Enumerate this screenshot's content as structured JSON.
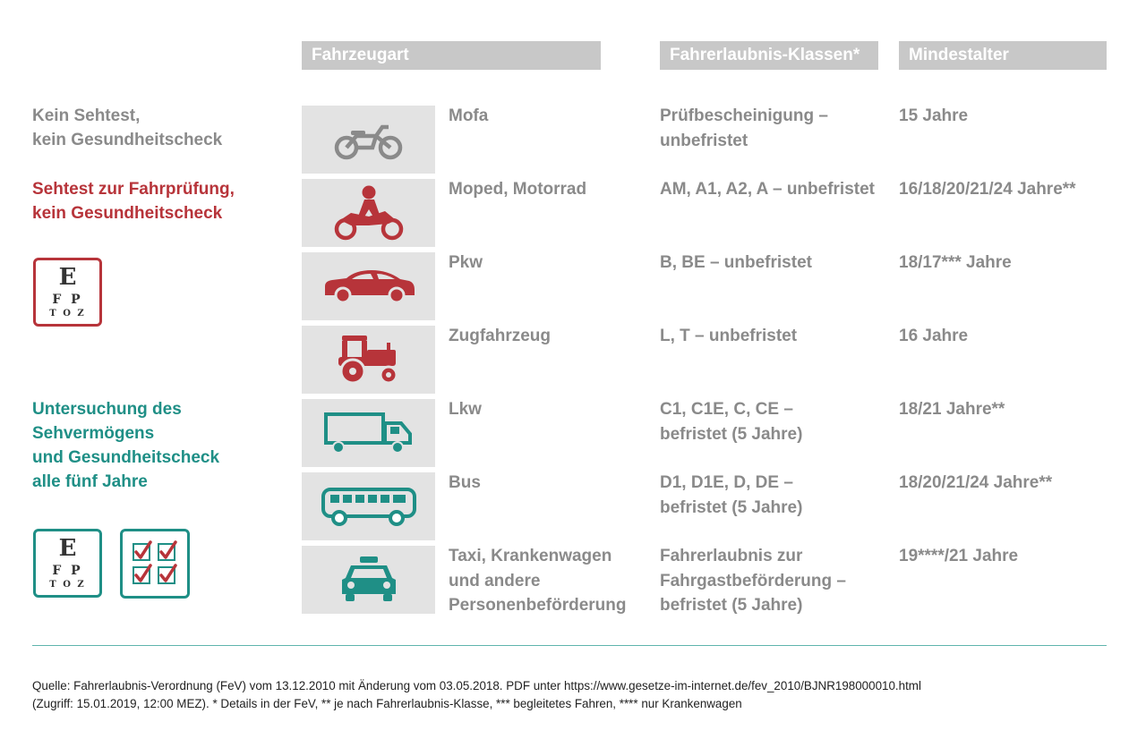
{
  "headers": {
    "vehicle_type": "Fahrzeugart",
    "license_classes": "Fahrerlaubnis-Klassen*",
    "min_age": "Mindestalter"
  },
  "groups": [
    {
      "label": "Kein Sehtest,\nkein Gesundheitscheck",
      "color": "#8a8a8a"
    },
    {
      "label": "Sehtest zur Fahrprüfung,\nkein Gesundheitscheck",
      "color": "#b7343a"
    },
    {
      "label": "Untersuchung des\nSehvermögens\nund Gesundheitscheck\nalle fünf Jahre",
      "color": "#1f8f86"
    }
  ],
  "eye_chart": {
    "line1": "E",
    "line2": "F P",
    "line3": "T O Z"
  },
  "rows": [
    {
      "icon": "moped-icon",
      "type": "Mofa",
      "classes": "Prüfbescheinigung –\nunbefristet",
      "age": "15 Jahre"
    },
    {
      "icon": "motorcycle-icon",
      "type": "Moped, Motorrad",
      "classes": "AM, A1, A2, A – unbefristet",
      "age": "16/18/20/21/24 Jahre**"
    },
    {
      "icon": "car-icon",
      "type": "Pkw",
      "classes": "B, BE – unbefristet",
      "age": "18/17*** Jahre"
    },
    {
      "icon": "tractor-icon",
      "type": "Zugfahrzeug",
      "classes": "L, T – unbefristet",
      "age": "16 Jahre"
    },
    {
      "icon": "truck-icon",
      "type": "Lkw",
      "classes": "C1, C1E, C, CE –\nbefristet (5 Jahre)",
      "age": "18/21 Jahre**"
    },
    {
      "icon": "bus-icon",
      "type": "Bus",
      "classes": "D1, D1E, D, DE –\nbefristet (5 Jahre)",
      "age": "18/20/21/24 Jahre**"
    },
    {
      "icon": "taxi-icon",
      "type": "Taxi, Krankenwagen\nund andere\nPersonenbeförderung",
      "classes": "Fahrerlaubnis zur\nFahrgastbeförderung –\nbefristet (5 Jahre)",
      "age": "19****/21 Jahre"
    }
  ],
  "source": {
    "line1": "Quelle: Fahrerlaubnis-Verordnung (FeV) vom 13.12.2010 mit Änderung vom 03.05.2018. PDF unter https://www.gesetze-im-internet.de/fev_2010/BJNR198000010.html",
    "line2": "(Zugriff: 15.01.2019, 12:00 MEZ). * Details in der FeV, ** je nach Fahrerlaubnis-Klasse, *** begleitetes Fahren, **** nur Krankenwagen"
  },
  "colors": {
    "gray": "#8a8a8a",
    "red": "#b7343a",
    "teal": "#1f8f86",
    "header_bg": "#c8c8c8"
  }
}
